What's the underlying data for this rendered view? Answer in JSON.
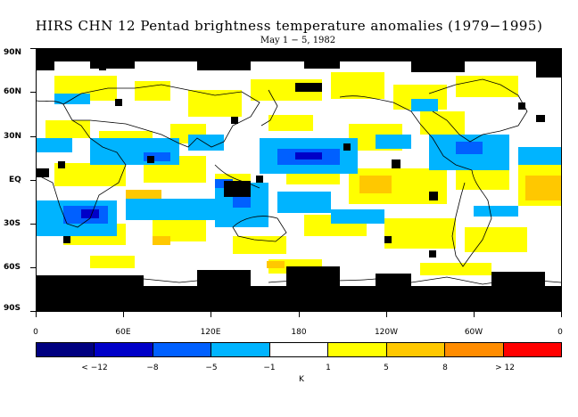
{
  "title": "HIRS CHN 12 Pentad brightness temperature anomalies (1979−1995)",
  "subtitle": "May 1 − 5, 1982",
  "lat_labels": [
    "90N",
    "60N",
    "30N",
    "EQ",
    "30S",
    "60S",
    "90S"
  ],
  "lon_labels": [
    "0",
    "60E",
    "120E",
    "180",
    "120W",
    "60W",
    "0"
  ],
  "colorbar": {
    "colors": [
      "#000080",
      "#0000c8",
      "#0060ff",
      "#00b4ff",
      "#ffffff",
      "#ffff00",
      "#ffc800",
      "#ff8c00",
      "#ff0000"
    ],
    "labels": [
      "< −12",
      "−8",
      "−5",
      "−1",
      "1",
      "5",
      "8",
      "> 12"
    ],
    "unit": "K"
  },
  "map_colors": {
    "missing": "#000000",
    "coast": "#000000"
  }
}
